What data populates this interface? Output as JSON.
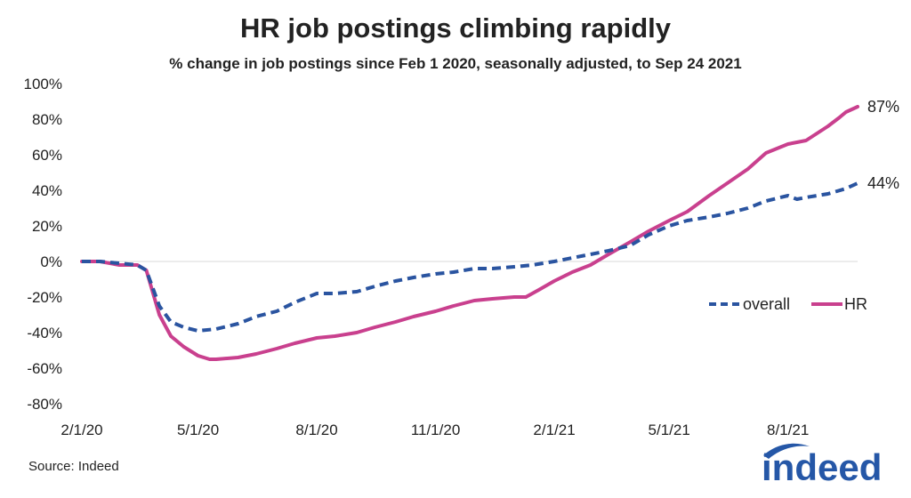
{
  "title": "HR job postings climbing rapidly",
  "subtitle": "% change in job postings since Feb 1 2020, seasonally adjusted, to Sep 24 2021",
  "source": "Source: Indeed",
  "logo_text": "indeed",
  "colors": {
    "overall": "#2a54a0",
    "hr": "#c9408e",
    "zero_line": "#d9d9d9",
    "logo": "#2557a7"
  },
  "chart_data": {
    "type": "line",
    "xlabel": "",
    "ylabel": "",
    "ylim": [
      -80,
      100
    ],
    "ytick_values": [
      -80,
      -60,
      -40,
      -20,
      0,
      20,
      40,
      60,
      80,
      100
    ],
    "ytick_labels": [
      "-80%",
      "-60%",
      "-40%",
      "-20%",
      "0%",
      "20%",
      "40%",
      "60%",
      "80%",
      "100%"
    ],
    "xlim": [
      "2020-02-01",
      "2021-09-24"
    ],
    "xtick_dates": [
      "2020-02-01",
      "2020-05-01",
      "2020-08-01",
      "2020-11-01",
      "2021-02-01",
      "2021-05-01",
      "2021-08-01"
    ],
    "xtick_labels": [
      "2/1/20",
      "5/1/20",
      "8/1/20",
      "11/1/20",
      "2/1/21",
      "5/1/21",
      "8/1/21"
    ],
    "legend": "right",
    "grid": false,
    "end_labels": {
      "overall": "44%",
      "hr": "87%"
    },
    "series": [
      {
        "name": "overall",
        "style": "dashed",
        "points": [
          [
            "2020-02-01",
            0
          ],
          [
            "2020-02-15",
            0
          ],
          [
            "2020-03-01",
            -1
          ],
          [
            "2020-03-15",
            -2
          ],
          [
            "2020-03-22",
            -5
          ],
          [
            "2020-04-01",
            -25
          ],
          [
            "2020-04-10",
            -34
          ],
          [
            "2020-04-20",
            -37
          ],
          [
            "2020-05-01",
            -39
          ],
          [
            "2020-05-15",
            -38
          ],
          [
            "2020-06-01",
            -35
          ],
          [
            "2020-06-15",
            -31
          ],
          [
            "2020-07-01",
            -28
          ],
          [
            "2020-07-15",
            -23
          ],
          [
            "2020-08-01",
            -18
          ],
          [
            "2020-08-15",
            -18
          ],
          [
            "2020-09-01",
            -17
          ],
          [
            "2020-09-15",
            -14
          ],
          [
            "2020-10-01",
            -11
          ],
          [
            "2020-10-15",
            -9
          ],
          [
            "2020-11-01",
            -7
          ],
          [
            "2020-11-15",
            -6
          ],
          [
            "2020-12-01",
            -4
          ],
          [
            "2020-12-15",
            -4
          ],
          [
            "2021-01-01",
            -3
          ],
          [
            "2021-01-15",
            -2
          ],
          [
            "2021-02-01",
            0
          ],
          [
            "2021-02-15",
            2
          ],
          [
            "2021-03-01",
            4
          ],
          [
            "2021-03-15",
            6
          ],
          [
            "2021-04-01",
            9
          ],
          [
            "2021-04-15",
            15
          ],
          [
            "2021-05-01",
            20
          ],
          [
            "2021-05-15",
            23
          ],
          [
            "2021-06-01",
            25
          ],
          [
            "2021-06-15",
            27
          ],
          [
            "2021-07-01",
            30
          ],
          [
            "2021-07-15",
            34
          ],
          [
            "2021-08-01",
            37
          ],
          [
            "2021-08-08",
            35
          ],
          [
            "2021-08-15",
            36
          ],
          [
            "2021-09-01",
            38
          ],
          [
            "2021-09-15",
            41
          ],
          [
            "2021-09-24",
            44
          ]
        ]
      },
      {
        "name": "HR",
        "style": "solid",
        "points": [
          [
            "2020-02-01",
            0
          ],
          [
            "2020-02-15",
            0
          ],
          [
            "2020-03-01",
            -2
          ],
          [
            "2020-03-15",
            -2
          ],
          [
            "2020-03-22",
            -5
          ],
          [
            "2020-04-01",
            -30
          ],
          [
            "2020-04-10",
            -42
          ],
          [
            "2020-04-20",
            -48
          ],
          [
            "2020-05-01",
            -53
          ],
          [
            "2020-05-10",
            -55
          ],
          [
            "2020-05-15",
            -55
          ],
          [
            "2020-06-01",
            -54
          ],
          [
            "2020-06-15",
            -52
          ],
          [
            "2020-07-01",
            -49
          ],
          [
            "2020-07-15",
            -46
          ],
          [
            "2020-08-01",
            -43
          ],
          [
            "2020-08-15",
            -42
          ],
          [
            "2020-09-01",
            -40
          ],
          [
            "2020-09-15",
            -37
          ],
          [
            "2020-10-01",
            -34
          ],
          [
            "2020-10-15",
            -31
          ],
          [
            "2020-11-01",
            -28
          ],
          [
            "2020-11-15",
            -25
          ],
          [
            "2020-12-01",
            -22
          ],
          [
            "2020-12-15",
            -21
          ],
          [
            "2021-01-01",
            -20
          ],
          [
            "2021-01-10",
            -20
          ],
          [
            "2021-01-20",
            -16
          ],
          [
            "2021-02-01",
            -11
          ],
          [
            "2021-02-15",
            -6
          ],
          [
            "2021-03-01",
            -2
          ],
          [
            "2021-03-15",
            4
          ],
          [
            "2021-04-01",
            11
          ],
          [
            "2021-04-15",
            17
          ],
          [
            "2021-05-01",
            23
          ],
          [
            "2021-05-15",
            28
          ],
          [
            "2021-06-01",
            37
          ],
          [
            "2021-06-15",
            44
          ],
          [
            "2021-07-01",
            52
          ],
          [
            "2021-07-15",
            61
          ],
          [
            "2021-08-01",
            66
          ],
          [
            "2021-08-15",
            68
          ],
          [
            "2021-09-01",
            76
          ],
          [
            "2021-09-10",
            81
          ],
          [
            "2021-09-15",
            84
          ],
          [
            "2021-09-24",
            87
          ]
        ]
      }
    ]
  }
}
